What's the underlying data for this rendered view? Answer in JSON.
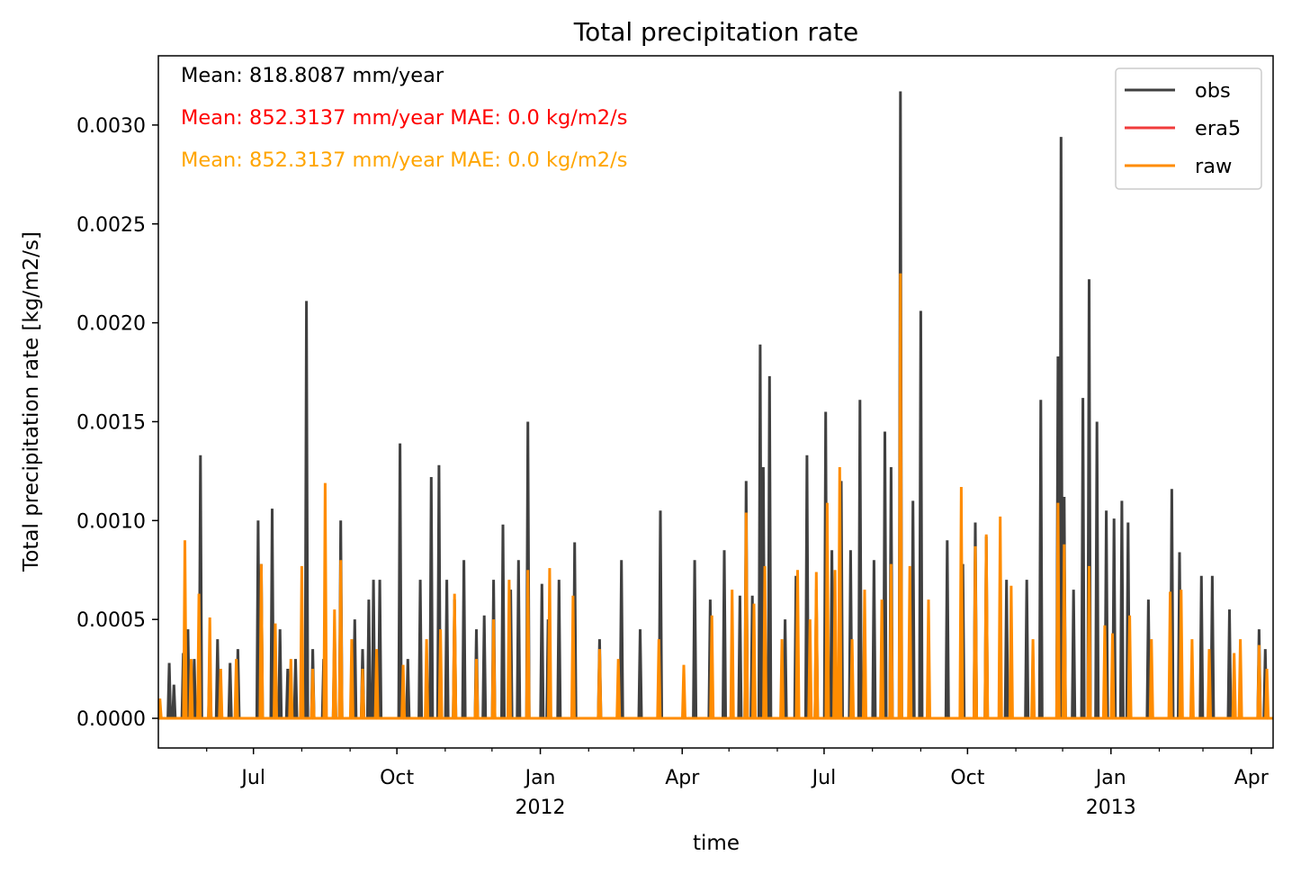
{
  "chart_data": {
    "type": "line",
    "title": "Total precipitation rate",
    "xlabel": "time",
    "ylabel": "Total precipitation rate [kg/m2/s]",
    "x_range": [
      "2011-05-01",
      "2013-04-15"
    ],
    "ylim": [
      -0.00015,
      0.00335
    ],
    "y_ticks": [
      0.0,
      0.0005,
      0.001,
      0.0015,
      0.002,
      0.0025,
      0.003
    ],
    "y_tick_labels": [
      "0.0000",
      "0.0005",
      "0.0010",
      "0.0015",
      "0.0020",
      "0.0025",
      "0.0030"
    ],
    "x_major_ticks": [
      {
        "date": "2011-07-01",
        "label": "Jul"
      },
      {
        "date": "2011-10-01",
        "label": "Oct"
      },
      {
        "date": "2012-01-01",
        "label": "Jan",
        "sublabel": "2012"
      },
      {
        "date": "2012-04-01",
        "label": "Apr"
      },
      {
        "date": "2012-07-01",
        "label": "Jul"
      },
      {
        "date": "2012-10-01",
        "label": "Oct"
      },
      {
        "date": "2013-01-01",
        "label": "Jan",
        "sublabel": "2013"
      },
      {
        "date": "2013-04-01",
        "label": "Apr"
      }
    ],
    "x_minor_ticks": [
      "2011-06-01",
      "2011-08-01",
      "2011-09-01",
      "2011-11-01",
      "2011-12-01",
      "2012-02-01",
      "2012-03-01",
      "2012-05-01",
      "2012-06-01",
      "2012-08-01",
      "2012-09-01",
      "2012-11-01",
      "2012-12-01",
      "2013-02-01",
      "2013-03-01"
    ],
    "grid": false,
    "legend_position": "top-right",
    "annotations": [
      {
        "text": "Mean: 818.8087 mm/year",
        "color": "#000000"
      },
      {
        "text": "Mean: 852.3137 mm/year MAE: 0.0 kg/m2/s",
        "color": "#ff0000"
      },
      {
        "text": "Mean: 852.3137 mm/year MAE: 0.0 kg/m2/s",
        "color": "#ffa500"
      }
    ],
    "series": [
      {
        "name": "obs",
        "color": "#404040",
        "points": [
          [
            "2011-05-08",
            0.00028
          ],
          [
            "2011-05-11",
            0.00017
          ],
          [
            "2011-05-17",
            0.00033
          ],
          [
            "2011-05-20",
            0.00045
          ],
          [
            "2011-05-24",
            0.0003
          ],
          [
            "2011-05-28",
            0.00133
          ],
          [
            "2011-06-03",
            0.00033
          ],
          [
            "2011-06-08",
            0.0004
          ],
          [
            "2011-06-16",
            0.00028
          ],
          [
            "2011-06-21",
            0.00035
          ],
          [
            "2011-07-04",
            0.001
          ],
          [
            "2011-07-06",
            0.00078
          ],
          [
            "2011-07-13",
            0.00106
          ],
          [
            "2011-07-18",
            0.00045
          ],
          [
            "2011-07-23",
            0.00025
          ],
          [
            "2011-07-28",
            0.0003
          ],
          [
            "2011-08-04",
            0.00211
          ],
          [
            "2011-08-08",
            0.00035
          ],
          [
            "2011-08-15",
            0.0003
          ],
          [
            "2011-08-22",
            0.00045
          ],
          [
            "2011-08-26",
            0.001
          ],
          [
            "2011-09-04",
            0.0005
          ],
          [
            "2011-09-09",
            0.00035
          ],
          [
            "2011-09-13",
            0.0006
          ],
          [
            "2011-09-16",
            0.0007
          ],
          [
            "2011-09-20",
            0.0007
          ],
          [
            "2011-10-03",
            0.00139
          ],
          [
            "2011-10-08",
            0.0003
          ],
          [
            "2011-10-16",
            0.0007
          ],
          [
            "2011-10-23",
            0.00122
          ],
          [
            "2011-10-28",
            0.00128
          ],
          [
            "2011-11-02",
            0.0007
          ],
          [
            "2011-11-07",
            0.0006
          ],
          [
            "2011-11-13",
            0.0008
          ],
          [
            "2011-11-21",
            0.00045
          ],
          [
            "2011-11-26",
            0.00052
          ],
          [
            "2011-12-02",
            0.0007
          ],
          [
            "2011-12-08",
            0.00098
          ],
          [
            "2011-12-13",
            0.00065
          ],
          [
            "2011-12-18",
            0.0008
          ],
          [
            "2011-12-24",
            0.0015
          ],
          [
            "2012-01-02",
            0.00068
          ],
          [
            "2012-01-06",
            0.0005
          ],
          [
            "2012-01-13",
            0.0007
          ],
          [
            "2012-01-23",
            0.00089
          ],
          [
            "2012-02-08",
            0.0004
          ],
          [
            "2012-02-22",
            0.0008
          ],
          [
            "2012-03-05",
            0.00045
          ],
          [
            "2012-03-18",
            0.00105
          ],
          [
            "2012-04-09",
            0.0008
          ],
          [
            "2012-04-19",
            0.0006
          ],
          [
            "2012-04-28",
            0.00085
          ],
          [
            "2012-05-08",
            0.00062
          ],
          [
            "2012-05-12",
            0.0012
          ],
          [
            "2012-05-16",
            0.00062
          ],
          [
            "2012-05-21",
            0.00189
          ],
          [
            "2012-05-23",
            0.00127
          ],
          [
            "2012-05-27",
            0.00173
          ],
          [
            "2012-06-06",
            0.0005
          ],
          [
            "2012-06-13",
            0.00072
          ],
          [
            "2012-06-20",
            0.00133
          ],
          [
            "2012-06-26",
            0.00065
          ],
          [
            "2012-07-02",
            0.00155
          ],
          [
            "2012-07-06",
            0.00085
          ],
          [
            "2012-07-12",
            0.0012
          ],
          [
            "2012-07-18",
            0.00085
          ],
          [
            "2012-07-24",
            0.00161
          ],
          [
            "2012-08-02",
            0.0008
          ],
          [
            "2012-08-09",
            0.00145
          ],
          [
            "2012-08-13",
            0.00127
          ],
          [
            "2012-08-19",
            0.00317
          ],
          [
            "2012-08-27",
            0.0011
          ],
          [
            "2012-09-01",
            0.00206
          ],
          [
            "2012-09-18",
            0.0009
          ],
          [
            "2012-09-28",
            0.00078
          ],
          [
            "2012-10-06",
            0.00099
          ],
          [
            "2012-10-13",
            0.00092
          ],
          [
            "2012-10-26",
            0.0007
          ],
          [
            "2012-11-08",
            0.0007
          ],
          [
            "2012-11-17",
            0.00161
          ],
          [
            "2012-11-28",
            0.00183
          ],
          [
            "2012-11-30",
            0.00294
          ],
          [
            "2012-12-02",
            0.00112
          ],
          [
            "2012-12-08",
            0.00065
          ],
          [
            "2012-12-14",
            0.00162
          ],
          [
            "2012-12-18",
            0.00222
          ],
          [
            "2012-12-23",
            0.0015
          ],
          [
            "2012-12-29",
            0.00105
          ],
          [
            "2013-01-03",
            0.00101
          ],
          [
            "2013-01-08",
            0.0011
          ],
          [
            "2013-01-12",
            0.00099
          ],
          [
            "2013-01-25",
            0.0006
          ],
          [
            "2013-02-09",
            0.00116
          ],
          [
            "2013-02-14",
            0.00084
          ],
          [
            "2013-02-28",
            0.00072
          ],
          [
            "2013-03-07",
            0.00072
          ],
          [
            "2013-03-18",
            0.00055
          ],
          [
            "2013-04-06",
            0.00045
          ],
          [
            "2013-04-10",
            0.00035
          ]
        ]
      },
      {
        "name": "era5",
        "color": "#f03c3c",
        "points": []
      },
      {
        "name": "raw",
        "color": "#ff8c00",
        "points": [
          [
            "2011-05-02",
            0.0001
          ],
          [
            "2011-05-18",
            0.0009
          ],
          [
            "2011-05-22",
            0.0003
          ],
          [
            "2011-05-27",
            0.00063
          ],
          [
            "2011-06-03",
            0.00051
          ],
          [
            "2011-06-10",
            0.00025
          ],
          [
            "2011-06-20",
            0.0003
          ],
          [
            "2011-07-06",
            0.00078
          ],
          [
            "2011-07-15",
            0.00048
          ],
          [
            "2011-07-25",
            0.0003
          ],
          [
            "2011-08-01",
            0.00077
          ],
          [
            "2011-08-08",
            0.00025
          ],
          [
            "2011-08-16",
            0.00119
          ],
          [
            "2011-08-22",
            0.00055
          ],
          [
            "2011-08-26",
            0.0008
          ],
          [
            "2011-09-02",
            0.0004
          ],
          [
            "2011-09-09",
            0.00025
          ],
          [
            "2011-09-18",
            0.00035
          ],
          [
            "2011-10-05",
            0.00027
          ],
          [
            "2011-10-20",
            0.0004
          ],
          [
            "2011-10-29",
            0.00045
          ],
          [
            "2011-11-07",
            0.00063
          ],
          [
            "2011-11-21",
            0.0003
          ],
          [
            "2011-12-02",
            0.0005
          ],
          [
            "2011-12-12",
            0.0007
          ],
          [
            "2011-12-24",
            0.00075
          ],
          [
            "2012-01-07",
            0.00076
          ],
          [
            "2012-01-22",
            0.00062
          ],
          [
            "2012-02-08",
            0.00035
          ],
          [
            "2012-02-20",
            0.0003
          ],
          [
            "2012-03-17",
            0.0004
          ],
          [
            "2012-04-02",
            0.00027
          ],
          [
            "2012-04-20",
            0.00052
          ],
          [
            "2012-05-03",
            0.00065
          ],
          [
            "2012-05-12",
            0.00104
          ],
          [
            "2012-05-17",
            0.00058
          ],
          [
            "2012-05-24",
            0.00077
          ],
          [
            "2012-06-04",
            0.0004
          ],
          [
            "2012-06-14",
            0.00075
          ],
          [
            "2012-06-22",
            0.0005
          ],
          [
            "2012-06-26",
            0.00074
          ],
          [
            "2012-07-03",
            0.00109
          ],
          [
            "2012-07-08",
            0.00075
          ],
          [
            "2012-07-11",
            0.00127
          ],
          [
            "2012-07-19",
            0.0004
          ],
          [
            "2012-07-27",
            0.00065
          ],
          [
            "2012-08-07",
            0.0006
          ],
          [
            "2012-08-13",
            0.00078
          ],
          [
            "2012-08-19",
            0.00225
          ],
          [
            "2012-08-25",
            0.00077
          ],
          [
            "2012-09-06",
            0.0006
          ],
          [
            "2012-09-27",
            0.00117
          ],
          [
            "2012-10-06",
            0.00087
          ],
          [
            "2012-10-13",
            0.00093
          ],
          [
            "2012-10-22",
            0.00102
          ],
          [
            "2012-10-29",
            0.00067
          ],
          [
            "2012-11-12",
            0.0004
          ],
          [
            "2012-11-28",
            0.00109
          ],
          [
            "2012-12-02",
            0.00088
          ],
          [
            "2012-12-18",
            0.00077
          ],
          [
            "2012-12-28",
            0.00047
          ],
          [
            "2013-01-02",
            0.00043
          ],
          [
            "2013-01-13",
            0.00052
          ],
          [
            "2013-01-27",
            0.0004
          ],
          [
            "2013-02-08",
            0.00064
          ],
          [
            "2013-02-15",
            0.00065
          ],
          [
            "2013-02-22",
            0.0004
          ],
          [
            "2013-03-05",
            0.00035
          ],
          [
            "2013-03-21",
            0.00033
          ],
          [
            "2013-03-25",
            0.0004
          ],
          [
            "2013-04-06",
            0.00037
          ],
          [
            "2013-04-11",
            0.00025
          ]
        ]
      }
    ]
  }
}
